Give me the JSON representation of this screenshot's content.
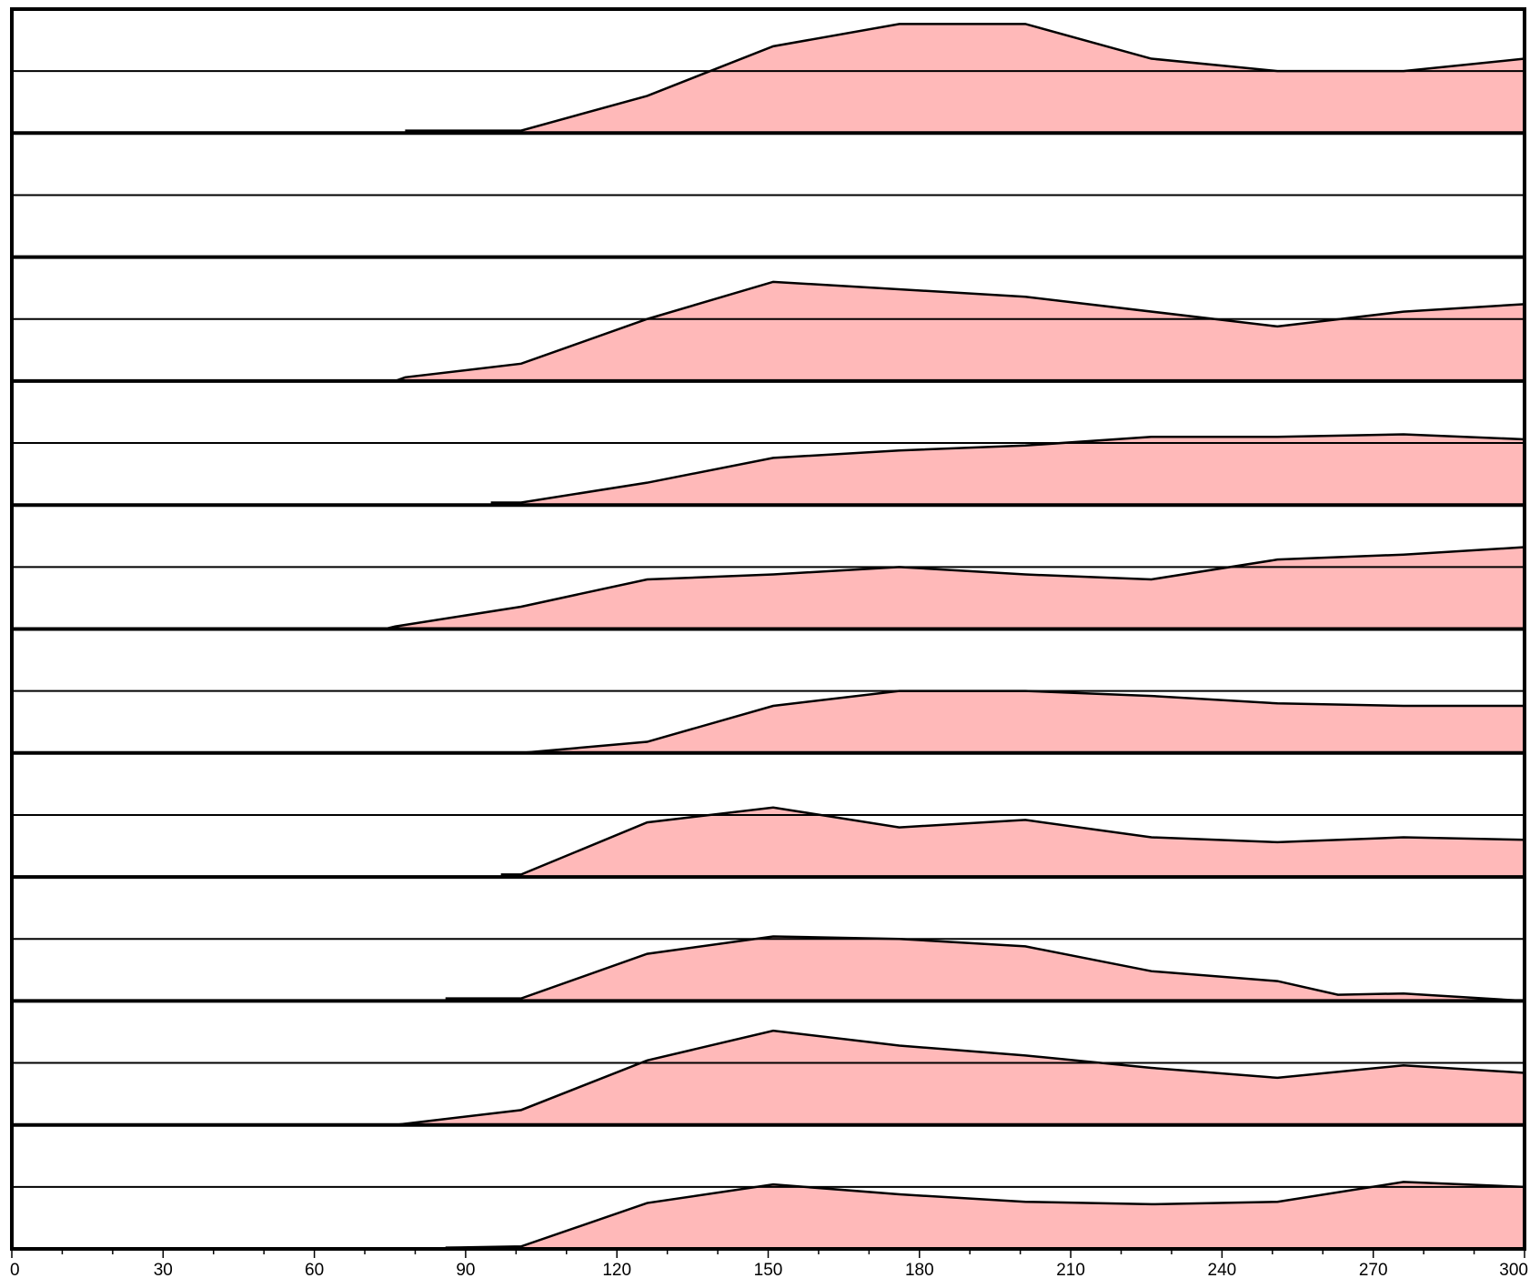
{
  "chart_data": {
    "type": "area",
    "layout": "stacked-panels",
    "x_ticks": [
      0,
      30,
      60,
      90,
      120,
      150,
      180,
      210,
      240,
      270,
      300
    ],
    "xlim": [
      0,
      300
    ],
    "ylim": [
      0,
      1
    ],
    "reference_line": 0.5,
    "grid": false,
    "fill_color": "#ffb9b9",
    "line_color": "#000000",
    "series": [
      {
        "x": [
          78,
          101,
          126,
          151,
          176,
          201,
          226,
          251,
          276,
          300
        ],
        "y": [
          0.02,
          0.02,
          0.3,
          0.7,
          0.88,
          0.88,
          0.6,
          0.5,
          0.5,
          0.6
        ]
      },
      {
        "x": [],
        "y": []
      },
      {
        "x": [
          76,
          78,
          101,
          126,
          151,
          201,
          251,
          276,
          300
        ],
        "y": [
          0.0,
          0.03,
          0.14,
          0.5,
          0.8,
          0.68,
          0.44,
          0.56,
          0.62
        ]
      },
      {
        "x": [
          95,
          101,
          126,
          151,
          176,
          201,
          226,
          251,
          276,
          300
        ],
        "y": [
          0.02,
          0.02,
          0.18,
          0.38,
          0.44,
          0.48,
          0.55,
          0.55,
          0.57,
          0.53
        ]
      },
      {
        "x": [
          74,
          76,
          101,
          126,
          151,
          176,
          201,
          226,
          251,
          276,
          300
        ],
        "y": [
          0.0,
          0.02,
          0.18,
          0.4,
          0.44,
          0.5,
          0.44,
          0.4,
          0.56,
          0.6,
          0.66
        ]
      },
      {
        "x": [
          101,
          126,
          151,
          176,
          201,
          226,
          251,
          276,
          300
        ],
        "y": [
          0.0,
          0.09,
          0.38,
          0.5,
          0.5,
          0.46,
          0.4,
          0.38,
          0.38
        ]
      },
      {
        "x": [
          97,
          101,
          126,
          151,
          176,
          201,
          226,
          251,
          276,
          300
        ],
        "y": [
          0.02,
          0.02,
          0.44,
          0.56,
          0.4,
          0.46,
          0.32,
          0.28,
          0.32,
          0.3
        ]
      },
      {
        "x": [
          86,
          101,
          126,
          151,
          176,
          201,
          226,
          251,
          263,
          276,
          300
        ],
        "y": [
          0.02,
          0.02,
          0.38,
          0.52,
          0.5,
          0.44,
          0.24,
          0.16,
          0.05,
          0.06,
          0.0
        ]
      },
      {
        "x": [
          76,
          101,
          126,
          151,
          176,
          201,
          226,
          251,
          276,
          300
        ],
        "y": [
          0.0,
          0.12,
          0.52,
          0.76,
          0.64,
          0.56,
          0.46,
          0.38,
          0.48,
          0.42
        ]
      },
      {
        "x": [
          86,
          101,
          126,
          151,
          176,
          201,
          226,
          251,
          276,
          300
        ],
        "y": [
          0.01,
          0.02,
          0.37,
          0.52,
          0.44,
          0.38,
          0.36,
          0.38,
          0.54,
          0.5
        ]
      }
    ]
  }
}
